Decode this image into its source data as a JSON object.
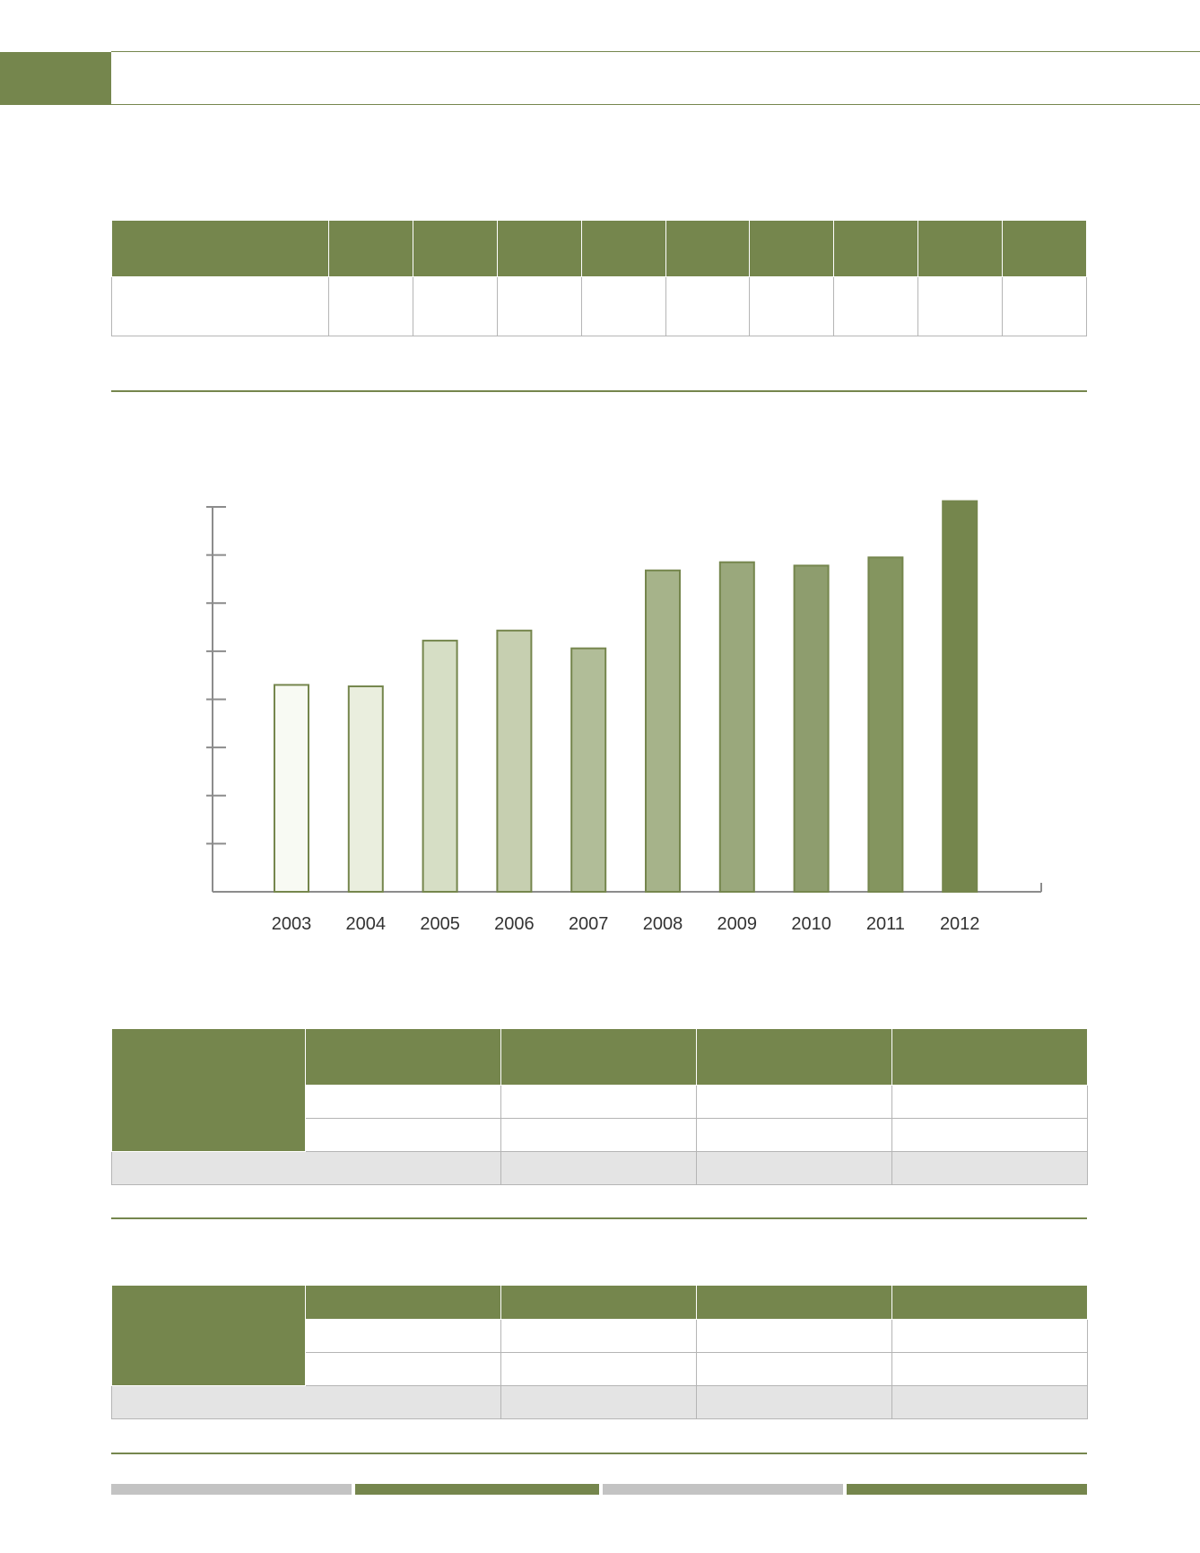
{
  "colors": {
    "accent": "#75864d",
    "table_border": "#b5b5b5",
    "summary_row": "#e4e4e4",
    "footer_gray": "#c3c3c3"
  },
  "chart_data": {
    "type": "bar",
    "categories": [
      "2003",
      "2004",
      "2005",
      "2006",
      "2007",
      "2008",
      "2009",
      "2010",
      "2011",
      "2012"
    ],
    "values": [
      4.3,
      4.27,
      5.22,
      5.43,
      5.06,
      6.68,
      6.85,
      6.78,
      6.95,
      8.12
    ],
    "ylim": [
      0,
      8
    ],
    "yticks": 8,
    "bar_colors": [
      "#f8faf3",
      "#eaeede",
      "#d6dec5",
      "#c6cfb0",
      "#b1bd98",
      "#a6b38a",
      "#9aa87c",
      "#8e9d6e",
      "#84955f",
      "#75864d"
    ],
    "grid": false,
    "legend": "none",
    "title": "",
    "xlabel": "",
    "ylabel": ""
  }
}
